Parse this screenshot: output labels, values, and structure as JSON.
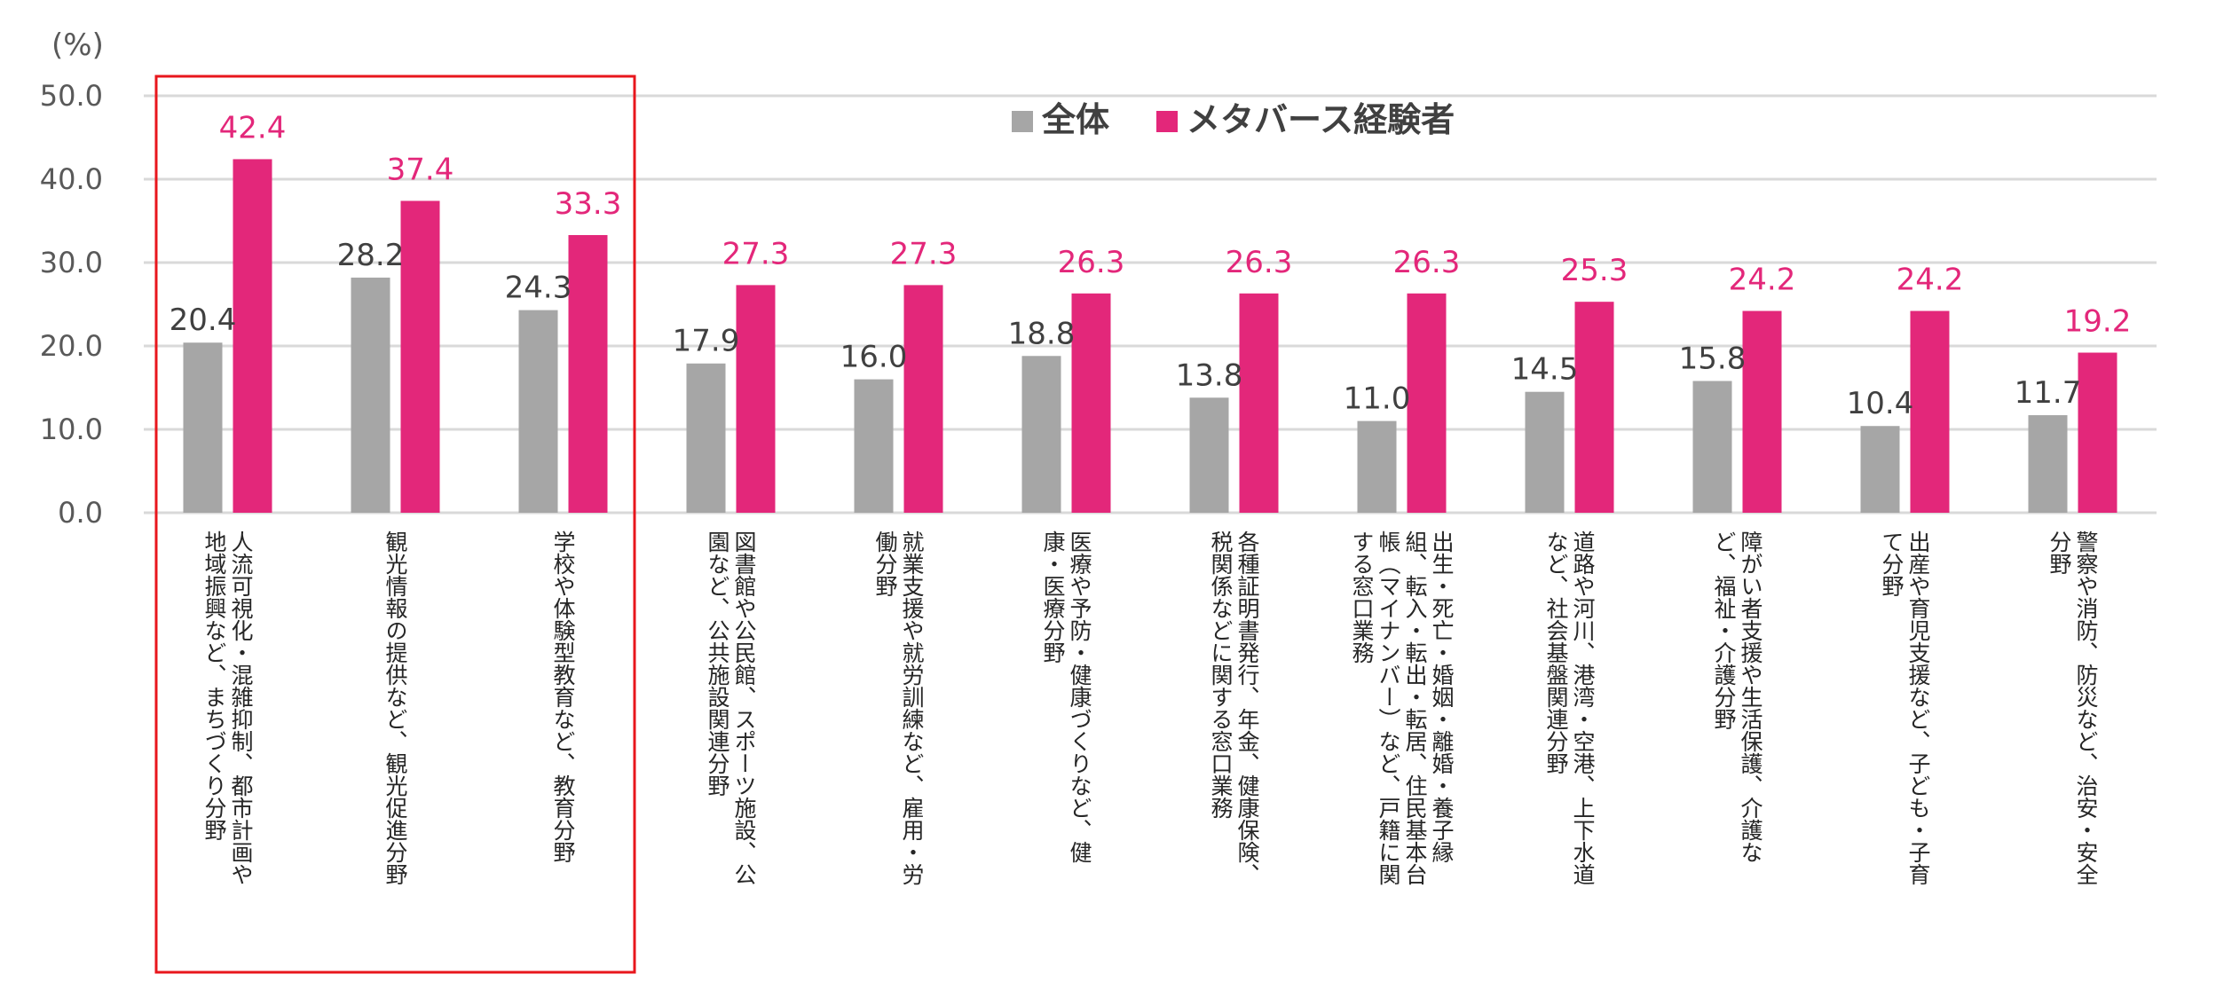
{
  "colors": {
    "all": "#a6a6a6",
    "meta": "#e3277a",
    "highlight": "#e8161c",
    "grid": "#d9d9d9"
  },
  "chart_data": {
    "type": "bar",
    "title": "",
    "unit_label": "(%)",
    "xlabel": "",
    "ylabel": "",
    "ylim": [
      0,
      50
    ],
    "yticks": [
      "0.0",
      "10.0",
      "20.0",
      "30.0",
      "40.0",
      "50.0"
    ],
    "grid": true,
    "legend_position": "top-center",
    "categories": [
      [
        "人流可視化・混雑抑制、都市計画や",
        "地域振興など、まちづくり分野"
      ],
      [
        "観光情報の提供など、観光促進分野"
      ],
      [
        "学校や体験型教育など、教育分野"
      ],
      [
        "図書館や公民館、スポーツ施設、公",
        "園など、公共施設関連分野"
      ],
      [
        "就業支援や就労訓練など、雇用・労",
        "働分野"
      ],
      [
        "医療や予防・健康づくりなど、健",
        "康・医療分野"
      ],
      [
        "各種証明書発行、年金、健康保険、",
        "税関係などに関する窓口業務"
      ],
      [
        "出生・死亡・婚姻・離婚・養子縁",
        "組、転入・転出・転居、住民基本台",
        "帳（マイナンバー）など、戸籍に関",
        "する窓口業務"
      ],
      [
        "道路や河川、港湾・空港、上下水道",
        "など、社会基盤関連分野"
      ],
      [
        "障がい者支援や生活保護、介護な",
        "ど、福祉・介護分野"
      ],
      [
        "出産や育児支援など、子ども・子育",
        "て分野"
      ],
      [
        "警察や消防、防災など、治安・安全",
        "分野"
      ]
    ],
    "series": [
      {
        "name": "全体",
        "values": [
          20.4,
          28.2,
          24.3,
          17.9,
          16.0,
          18.8,
          13.8,
          11.0,
          14.5,
          15.8,
          10.4,
          11.7
        ],
        "labels": [
          "20.4",
          "28.2",
          "24.3",
          "17.9",
          "16.0",
          "18.8",
          "13.8",
          "11.0",
          "14.5",
          "15.8",
          "10.4",
          "11.7"
        ]
      },
      {
        "name": "メタバース経験者",
        "values": [
          42.4,
          37.4,
          33.3,
          27.3,
          27.3,
          26.3,
          26.3,
          26.3,
          25.3,
          24.2,
          24.2,
          19.2
        ],
        "labels": [
          "42.4",
          "37.4",
          "33.3",
          "27.3",
          "27.3",
          "26.3",
          "26.3",
          "26.3",
          "25.3",
          "24.2",
          "24.2",
          "19.2"
        ]
      }
    ],
    "highlight_categories": [
      0,
      1,
      2
    ]
  }
}
